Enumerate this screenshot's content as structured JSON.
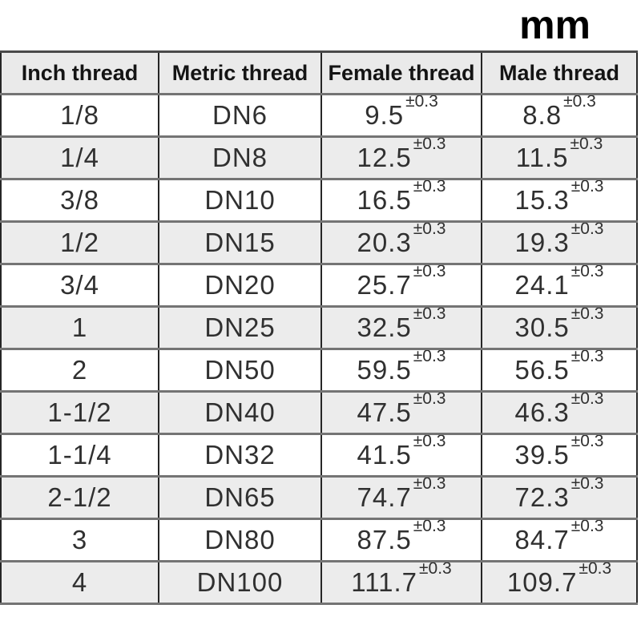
{
  "page": {
    "unit_label": "mm"
  },
  "colors": {
    "header_bg": "#eaeaea",
    "row_bg": "#ffffff",
    "row_alt_bg": "#ececec",
    "h_border": "#747474",
    "top_border": "#4a4a4a",
    "v_border": "#262626",
    "header_text": "#141414",
    "cell_text": "#303030",
    "title_text": "#000000",
    "page_bg": "#ffffff"
  },
  "table": {
    "columns": [
      "Inch thread",
      "Metric thread",
      "Female thread",
      "Male thread"
    ],
    "tolerance": "±0.3",
    "rows": [
      {
        "inch": "1/8",
        "metric": "DN6",
        "female": "9.5",
        "male": "8.8"
      },
      {
        "inch": "1/4",
        "metric": "DN8",
        "female": "12.5",
        "male": "11.5"
      },
      {
        "inch": "3/8",
        "metric": "DN10",
        "female": "16.5",
        "male": "15.3"
      },
      {
        "inch": "1/2",
        "metric": "DN15",
        "female": "20.3",
        "male": "19.3"
      },
      {
        "inch": "3/4",
        "metric": "DN20",
        "female": "25.7",
        "male": "24.1"
      },
      {
        "inch": "1",
        "metric": "DN25",
        "female": "32.5",
        "male": "30.5"
      },
      {
        "inch": "2",
        "metric": "DN50",
        "female": "59.5",
        "male": "56.5"
      },
      {
        "inch": "1-1/2",
        "metric": "DN40",
        "female": "47.5",
        "male": "46.3"
      },
      {
        "inch": "1-1/4",
        "metric": "DN32",
        "female": "41.5",
        "male": "39.5"
      },
      {
        "inch": "2-1/2",
        "metric": "DN65",
        "female": "74.7",
        "male": "72.3"
      },
      {
        "inch": "3",
        "metric": "DN80",
        "female": "87.5",
        "male": "84.7"
      },
      {
        "inch": "4",
        "metric": "DN100",
        "female": "111.7",
        "male": "109.7"
      }
    ]
  }
}
